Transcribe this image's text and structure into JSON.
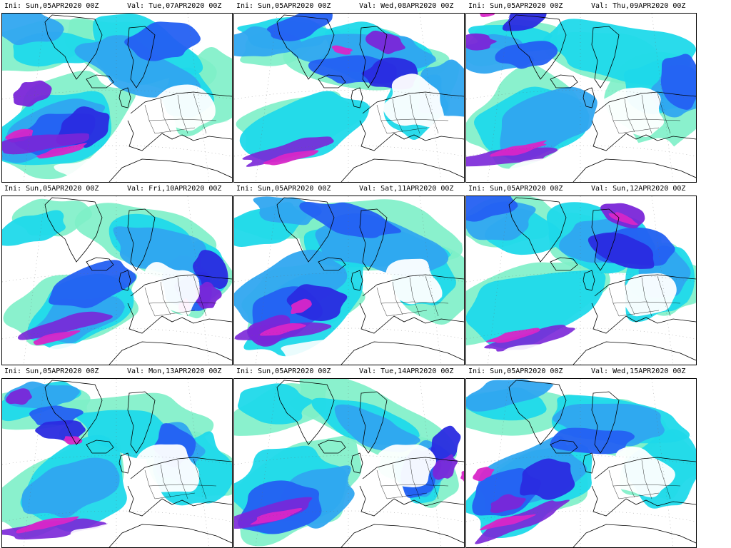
{
  "panels": [
    {
      "ini": "Ini: Sun,05APR2020 00Z",
      "val": "Val: Tue,07APR2020 00Z"
    },
    {
      "ini": "Ini: Sun,05APR2020 00Z",
      "val": "Val: Wed,08APR2020 00Z"
    },
    {
      "ini": "Ini: Sun,05APR2020 00Z",
      "val": "Val: Thu,09APR2020 00Z"
    },
    {
      "ini": "Ini: Sun,05APR2020 00Z",
      "val": "Val: Fri,10APR2020 00Z"
    },
    {
      "ini": "Ini: Sun,05APR2020 00Z",
      "val": "Val: Sat,11APR2020 00Z"
    },
    {
      "ini": "Ini: Sun,05APR2020 00Z",
      "val": "Val: Sun,12APR2020 00Z"
    },
    {
      "ini": "Ini: Sun,05APR2020 00Z",
      "val": "Val: Mon,13APR2020 00Z"
    },
    {
      "ini": "Ini: Sun,05APR2020 00Z",
      "val": "Val: Tue,14APR2020 00Z"
    },
    {
      "ini": "Ini: Sun,05APR2020 00Z",
      "val": "Val: Wed,15APR2020 00Z"
    }
  ],
  "palette": {
    "light": "#7df0c8",
    "cyan": "#1fd9ea",
    "sky": "#30a7f0",
    "blue": "#2460f2",
    "deep": "#2a2be0",
    "violet": "#7a26d8",
    "magenta": "#d826c8",
    "coast": "#000000"
  }
}
